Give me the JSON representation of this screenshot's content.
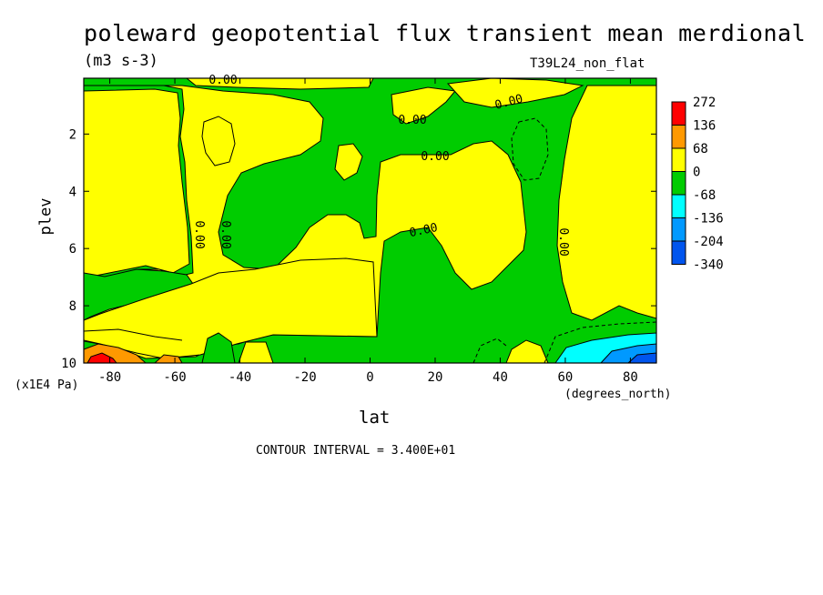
{
  "chart_data": {
    "type": "heatmap",
    "title": "poleward geopotential flux transient mean merdional",
    "units": "(m3 s-3)",
    "dataset": "T39L24_non_flat",
    "xlabel": "lat",
    "x_units": "(degrees_north)",
    "ylabel": "plev",
    "y_units": "(x1E4 Pa)",
    "contour_interval_label": "CONTOUR INTERVAL = 3.400E+01",
    "xlim": [
      -88,
      88
    ],
    "ylim": [
      10,
      0.05
    ],
    "x_ticks": [
      -80,
      -60,
      -40,
      -20,
      0,
      20,
      40,
      60,
      80
    ],
    "x_tick_labels": [
      "-80",
      "-60",
      "-40",
      "-20",
      "0",
      "20",
      "40",
      "60",
      "80"
    ],
    "y_ticks": [
      2,
      4,
      6,
      8,
      10
    ],
    "y_tick_labels": [
      "2",
      "4",
      "6",
      "8",
      "10"
    ],
    "contour_labels": [
      "0.00",
      "0.00",
      "0.00",
      "0.00",
      "0.00",
      "0.00",
      "0.00",
      "0.00"
    ],
    "legend": {
      "levels": [
        "272",
        "136",
        "68",
        "0",
        "-68",
        "-136",
        "-204",
        "-340"
      ],
      "colors": [
        "#ff0000",
        "#ff9900",
        "#ffff00",
        "#00cc00",
        "#00ffff",
        "#0099ff",
        "#0055ee"
      ]
    },
    "colors": {
      "positive_high": "#ff0000",
      "positive_mid": "#ff9900",
      "positive_low": "#ffff00",
      "negative_low": "#00cc00",
      "negative_mid": "#00ffff",
      "negative_high": "#0099ff",
      "negative_max": "#0055ee"
    }
  }
}
